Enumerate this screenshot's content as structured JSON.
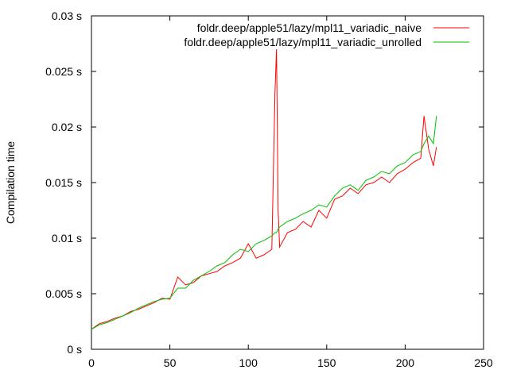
{
  "chart_data": {
    "type": "line",
    "title": "",
    "xlabel": "",
    "ylabel": "Compilation time",
    "xlim": [
      0,
      250
    ],
    "ylim": [
      0,
      0.03
    ],
    "grid": false,
    "legend_position": "top-right",
    "x_ticks": [
      0,
      50,
      100,
      150,
      200,
      250
    ],
    "x_tick_labels": [
      "0",
      "50",
      "100",
      "150",
      "200",
      "250"
    ],
    "y_ticks": [
      0,
      0.005,
      0.01,
      0.015,
      0.02,
      0.025,
      0.03
    ],
    "y_tick_labels": [
      "0 s",
      "0.005 s",
      "0.01 s",
      "0.015 s",
      "0.02 s",
      "0.025 s",
      "0.03 s"
    ],
    "x": [
      0,
      5,
      10,
      15,
      20,
      25,
      30,
      35,
      40,
      45,
      50,
      55,
      60,
      65,
      70,
      75,
      80,
      85,
      90,
      95,
      100,
      105,
      110,
      115,
      117,
      118,
      119,
      120,
      125,
      130,
      135,
      140,
      145,
      150,
      155,
      160,
      165,
      170,
      175,
      180,
      185,
      190,
      195,
      200,
      205,
      210,
      212,
      215,
      218,
      220
    ],
    "series": [
      {
        "name": "foldr.deep/apple51/lazy/mpl11_variadic_naive",
        "color": "#ff0000",
        "values": [
          0.0018,
          0.0023,
          0.0025,
          0.0028,
          0.003,
          0.0034,
          0.0036,
          0.0039,
          0.0042,
          0.0046,
          0.0045,
          0.0065,
          0.0058,
          0.006,
          0.0066,
          0.0068,
          0.007,
          0.0075,
          0.0078,
          0.0082,
          0.0095,
          0.0082,
          0.0085,
          0.009,
          0.023,
          0.027,
          0.0125,
          0.0092,
          0.0105,
          0.0108,
          0.0115,
          0.011,
          0.0125,
          0.0118,
          0.0135,
          0.0138,
          0.0145,
          0.014,
          0.0148,
          0.015,
          0.0155,
          0.015,
          0.0158,
          0.0162,
          0.0168,
          0.0172,
          0.021,
          0.018,
          0.0165,
          0.0182
        ]
      },
      {
        "name": "foldr.deep/apple51/lazy/mpl11_variadic_unrolled",
        "color": "#00c000",
        "values": [
          0.0018,
          0.0022,
          0.0024,
          0.0027,
          0.003,
          0.0033,
          0.0037,
          0.004,
          0.0043,
          0.0045,
          0.0046,
          0.0055,
          0.0055,
          0.0062,
          0.0066,
          0.007,
          0.0075,
          0.0078,
          0.0085,
          0.009,
          0.0088,
          0.0095,
          0.0098,
          0.0102,
          0.0105,
          0.0105,
          0.0108,
          0.011,
          0.0115,
          0.0118,
          0.0122,
          0.0125,
          0.013,
          0.0128,
          0.0138,
          0.0145,
          0.0148,
          0.0143,
          0.0152,
          0.0155,
          0.016,
          0.0158,
          0.0165,
          0.0168,
          0.0175,
          0.0178,
          0.0185,
          0.0192,
          0.0185,
          0.021
        ]
      }
    ]
  }
}
